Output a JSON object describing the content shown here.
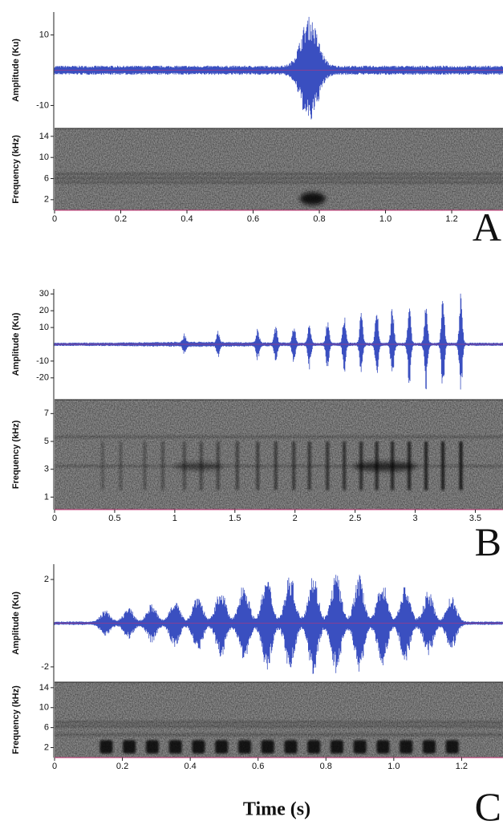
{
  "figure": {
    "xlabel": "Time (s)"
  },
  "chart_data": [
    {
      "type": "waveform-spectrogram",
      "panel": "A",
      "amplitude": {
        "label": "Amplitude (Ku)",
        "ylim": [
          -16.5,
          16.5
        ],
        "yticks": [
          10,
          -10
        ],
        "color": "#3a4fc0"
      },
      "frequency": {
        "label": "Frequency (kHz)",
        "ylim": [
          0,
          15.5
        ],
        "yticks": [
          14,
          10,
          6,
          2
        ]
      },
      "xlim": [
        0,
        1.355
      ],
      "xticks": [
        0,
        0.2,
        0.4,
        0.6,
        0.8,
        {
          "value": 1,
          "label": "1.0"
        },
        1.2
      ]
    },
    {
      "type": "waveform-spectrogram",
      "panel": "B",
      "amplitude": {
        "label": "Amplitude (Ku)",
        "ylim": [
          -33,
          33
        ],
        "yticks": [
          30,
          20,
          10,
          -10,
          -20
        ],
        "color": "#3a4fc0"
      },
      "frequency": {
        "label": "Frequency (kHz)",
        "ylim": [
          0.1,
          8
        ],
        "yticks": [
          7,
          5,
          3,
          1
        ]
      },
      "xlim": [
        0,
        3.73
      ],
      "xticks": [
        0,
        0.5,
        1,
        1.5,
        2,
        2.5,
        3,
        3.5
      ]
    },
    {
      "type": "waveform-spectrogram",
      "panel": "C",
      "amplitude": {
        "label": "Amplitude (Ku)",
        "ylim": [
          -2.7,
          2.7
        ],
        "yticks": [
          2,
          -2
        ],
        "color": "#3a4fc0"
      },
      "frequency": {
        "label": "Frequency (kHz)",
        "ylim": [
          0,
          15.1
        ],
        "yticks": [
          14,
          10,
          6,
          2
        ]
      },
      "xlim": [
        0,
        1.322
      ],
      "xticks": [
        0,
        0.2,
        0.4,
        0.6,
        0.8,
        {
          "value": 1,
          "label": "1.0"
        },
        1.2
      ]
    }
  ]
}
